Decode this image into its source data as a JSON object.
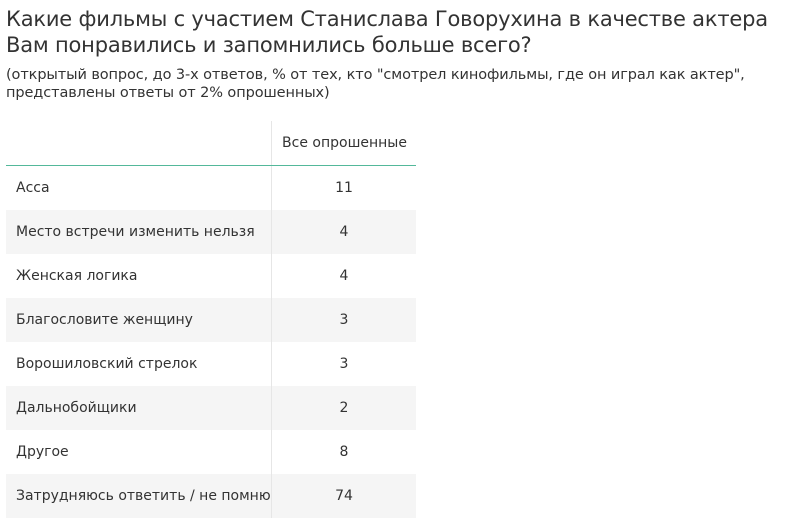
{
  "title": "Какие фильмы с участием Станислава Говорухина в качестве актера Вам понравились и запомнились больше всего?",
  "subtitle": "(открытый вопрос, до 3-х ответов, % от тех, кто \"смотрел кинофильмы, где он играл как актер\", представлены ответы от 2% опрошенных)",
  "colors": {
    "header_rule": "#53b89a",
    "row_stripe": "#f5f5f5",
    "text": "#333333"
  },
  "chart_data": {
    "type": "table",
    "title": "Какие фильмы с участием Станислава Говорухина в качестве актера Вам понравились и запомнились больше всего?",
    "columns": [
      "Все опрошенные"
    ],
    "rows": [
      {
        "label": "Асса",
        "value": 11
      },
      {
        "label": "Место встречи изменить нельзя",
        "value": 4
      },
      {
        "label": "Женская логика",
        "value": 4
      },
      {
        "label": "Благословите женщину",
        "value": 3
      },
      {
        "label": "Ворошиловский стрелок",
        "value": 3
      },
      {
        "label": "Дальнобойщики",
        "value": 2
      },
      {
        "label": "Другое",
        "value": 8
      },
      {
        "label": "Затрудняюсь ответить / не помню",
        "value": 74
      }
    ]
  }
}
